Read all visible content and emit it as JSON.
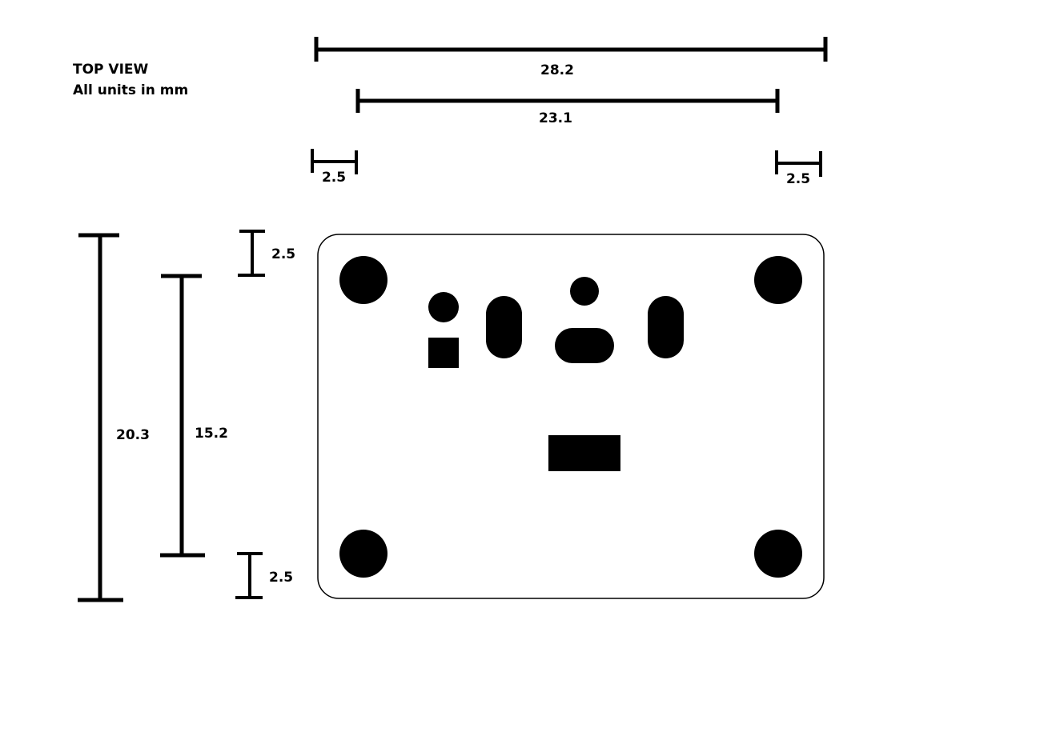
{
  "header": {
    "title": "TOP VIEW",
    "units_note": "All units in mm"
  },
  "dimensions": {
    "overall_width": "28.2",
    "hole_spacing_width": "23.1",
    "left_margin": "2.5",
    "right_margin": "2.5",
    "overall_height": "20.3",
    "hole_spacing_height": "15.2",
    "top_margin": "2.5",
    "bottom_margin": "2.5"
  },
  "colors": {
    "ink": "#000000",
    "background": "#ffffff"
  }
}
